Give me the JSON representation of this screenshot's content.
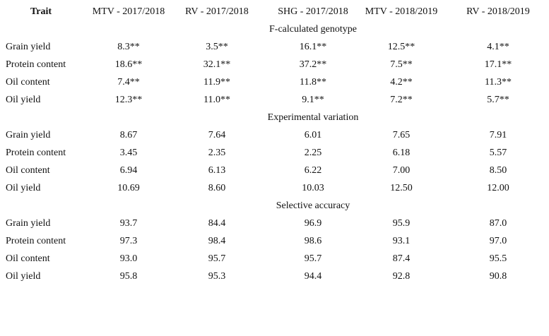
{
  "table": {
    "header": [
      "Trait",
      "MTV - 2017/2018",
      "RV - 2017/2018",
      "SHG - 2017/2018",
      "MTV - 2018/2019",
      "RV - 2018/2019"
    ],
    "sections": [
      {
        "title": "F-calculated genotype",
        "rows": [
          [
            "Grain yield",
            "8.3**",
            "3.5**",
            "16.1**",
            "12.5**",
            "4.1**"
          ],
          [
            "Protein content",
            "18.6**",
            "32.1**",
            "37.2**",
            "7.5**",
            "17.1**"
          ],
          [
            "Oil content",
            "7.4**",
            "11.9**",
            "11.8**",
            "4.2**",
            "11.3**"
          ],
          [
            "Oil yield",
            "12.3**",
            "11.0**",
            "9.1**",
            "7.2**",
            "5.7**"
          ]
        ]
      },
      {
        "title": "Experimental variation",
        "rows": [
          [
            "Grain yield",
            "8.67",
            "7.64",
            "6.01",
            "7.65",
            "7.91"
          ],
          [
            "Protein content",
            "3.45",
            "2.35",
            "2.25",
            "6.18",
            "5.57"
          ],
          [
            "Oil content",
            "6.94",
            "6.13",
            "6.22",
            "7.00",
            "8.50"
          ],
          [
            "Oil yield",
            "10.69",
            "8.60",
            "10.03",
            "12.50",
            "12.00"
          ]
        ]
      },
      {
        "title": "Selective accuracy",
        "rows": [
          [
            "Grain yield",
            "93.7",
            "84.4",
            "96.9",
            "95.9",
            "87.0"
          ],
          [
            "Protein content",
            "97.3",
            "98.4",
            "98.6",
            "93.1",
            "97.0"
          ],
          [
            "Oil content",
            "93.0",
            "95.7",
            "95.7",
            "87.4",
            "95.5"
          ],
          [
            "Oil yield",
            "95.8",
            "95.3",
            "94.4",
            "92.8",
            "90.8"
          ]
        ]
      }
    ]
  }
}
